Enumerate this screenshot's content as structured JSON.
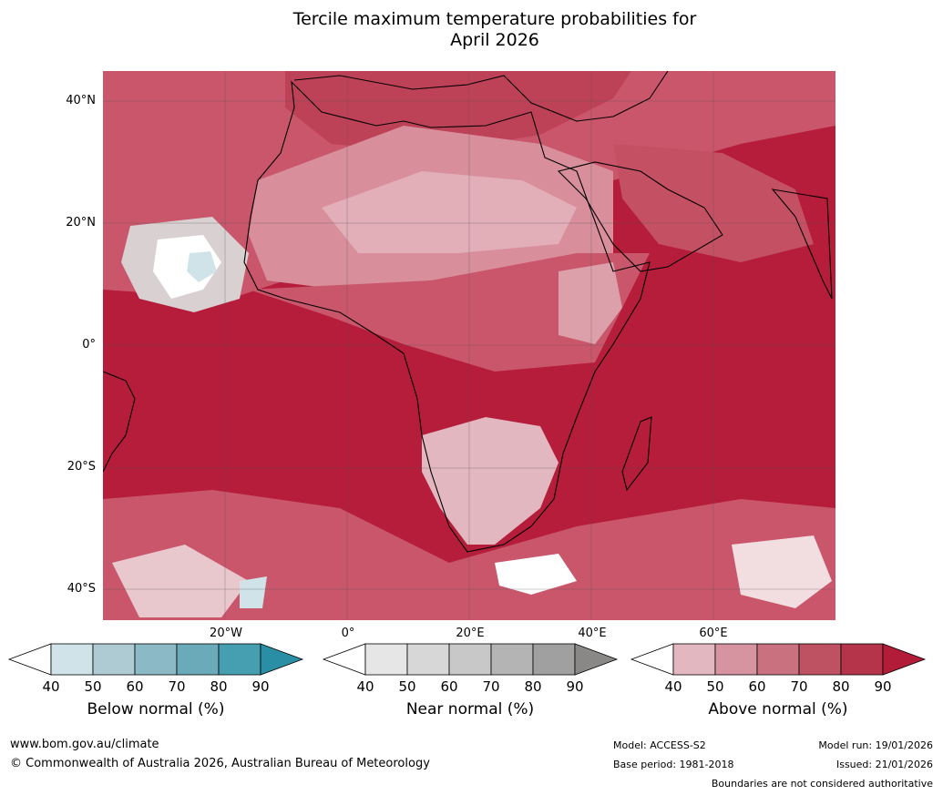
{
  "title_line1": "Tercile maximum temperature probabilities for",
  "title_line2": "April 2026",
  "lat_labels": [
    "40°N",
    "20°N",
    "0°",
    "20°S",
    "40°S"
  ],
  "lon_labels": [
    "20°W",
    "0°",
    "20°E",
    "40°E",
    "60°E"
  ],
  "legends": {
    "below": {
      "caption": "Below normal (%)",
      "ticks": [
        "40",
        "50",
        "60",
        "70",
        "80",
        "90"
      ],
      "colors": [
        "#ffffff",
        "#cfe3e9",
        "#aecbd3",
        "#8bb9c6",
        "#6aaab9",
        "#459fb1",
        "#2a8fa5"
      ]
    },
    "near": {
      "caption": "Near normal (%)",
      "ticks": [
        "40",
        "50",
        "60",
        "70",
        "80",
        "90"
      ],
      "colors": [
        "#ffffff",
        "#e6e6e6",
        "#d7d7d7",
        "#c8c8c8",
        "#b4b4b4",
        "#a0a0a0",
        "#8a8787"
      ]
    },
    "above": {
      "caption": "Above normal (%)",
      "ticks": [
        "40",
        "50",
        "60",
        "70",
        "80",
        "90"
      ],
      "colors": [
        "#ffffff",
        "#e2b7bf",
        "#d5949f",
        "#c9717e",
        "#be5262",
        "#b5344a",
        "#b21c38"
      ]
    }
  },
  "footer": {
    "website": "www.bom.gov.au/climate",
    "copyright": "© Commonwealth of Australia 2026, Australian Bureau of Meteorology",
    "model": "Model: ACCESS-S2",
    "base_period": "Base period: 1981-2018",
    "model_run": "Model run: 19/01/2026",
    "issued": "Issued: 21/01/2026",
    "disclaimer": "Boundaries are not considered authoritative"
  }
}
